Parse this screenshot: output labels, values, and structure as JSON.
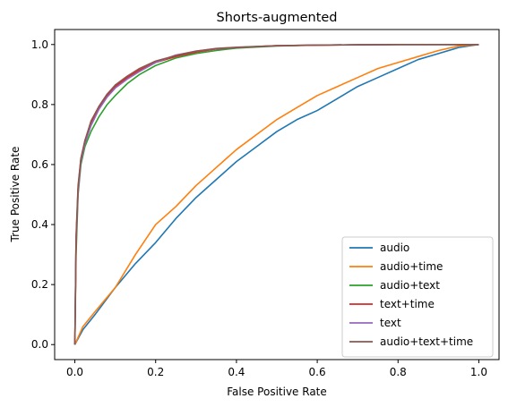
{
  "chart_data": {
    "type": "line",
    "title": "Shorts-augmented",
    "xlabel": "False Positive Rate",
    "ylabel": "True Positive Rate",
    "xlim": [
      -0.05,
      1.05
    ],
    "ylim": [
      -0.05,
      1.05
    ],
    "xticks": [
      "0.0",
      "0.2",
      "0.4",
      "0.6",
      "0.8",
      "1.0"
    ],
    "yticks": [
      "0.0",
      "0.2",
      "0.4",
      "0.6",
      "0.8",
      "1.0"
    ],
    "grid": false,
    "legend_position": "lower right",
    "series": [
      {
        "name": "audio",
        "color": "#1f77b4",
        "x": [
          0,
          0.02,
          0.05,
          0.1,
          0.15,
          0.2,
          0.25,
          0.3,
          0.35,
          0.4,
          0.45,
          0.5,
          0.55,
          0.6,
          0.65,
          0.7,
          0.75,
          0.8,
          0.85,
          0.9,
          0.95,
          1.0
        ],
        "y": [
          0,
          0.05,
          0.1,
          0.19,
          0.27,
          0.34,
          0.42,
          0.49,
          0.55,
          0.61,
          0.66,
          0.71,
          0.75,
          0.78,
          0.82,
          0.86,
          0.89,
          0.92,
          0.95,
          0.97,
          0.99,
          1.0
        ]
      },
      {
        "name": "audio+time",
        "color": "#ff7f0e",
        "x": [
          0,
          0.02,
          0.05,
          0.1,
          0.15,
          0.2,
          0.25,
          0.3,
          0.35,
          0.4,
          0.45,
          0.5,
          0.55,
          0.6,
          0.65,
          0.7,
          0.75,
          0.8,
          0.85,
          0.9,
          0.95,
          1.0
        ],
        "y": [
          0,
          0.06,
          0.11,
          0.19,
          0.3,
          0.4,
          0.46,
          0.53,
          0.59,
          0.65,
          0.7,
          0.75,
          0.79,
          0.83,
          0.86,
          0.89,
          0.92,
          0.94,
          0.96,
          0.98,
          0.995,
          1.0
        ]
      },
      {
        "name": "audio+text",
        "color": "#2ca02c",
        "x": [
          0,
          0.003,
          0.008,
          0.015,
          0.025,
          0.04,
          0.06,
          0.08,
          0.1,
          0.13,
          0.16,
          0.2,
          0.25,
          0.3,
          0.35,
          0.4,
          0.5,
          0.6,
          0.7,
          0.8,
          0.9,
          1.0
        ],
        "y": [
          0,
          0.3,
          0.5,
          0.6,
          0.66,
          0.71,
          0.76,
          0.8,
          0.83,
          0.87,
          0.9,
          0.93,
          0.955,
          0.97,
          0.98,
          0.988,
          0.995,
          0.998,
          0.999,
          1.0,
          1.0,
          1.0
        ]
      },
      {
        "name": "text+time",
        "color": "#d62728",
        "x": [
          0,
          0.003,
          0.008,
          0.015,
          0.025,
          0.04,
          0.06,
          0.08,
          0.1,
          0.13,
          0.16,
          0.2,
          0.25,
          0.3,
          0.35,
          0.4,
          0.5,
          0.6,
          0.7,
          0.8,
          0.9,
          1.0
        ],
        "y": [
          0,
          0.35,
          0.52,
          0.62,
          0.68,
          0.74,
          0.79,
          0.83,
          0.86,
          0.89,
          0.915,
          0.94,
          0.96,
          0.975,
          0.985,
          0.99,
          0.996,
          0.998,
          0.999,
          1.0,
          1.0,
          1.0
        ]
      },
      {
        "name": "text",
        "color": "#9467bd",
        "x": [
          0,
          0.003,
          0.008,
          0.015,
          0.025,
          0.04,
          0.06,
          0.08,
          0.1,
          0.13,
          0.16,
          0.2,
          0.25,
          0.3,
          0.35,
          0.4,
          0.5,
          0.6,
          0.7,
          0.8,
          0.9,
          1.0
        ],
        "y": [
          0,
          0.34,
          0.51,
          0.61,
          0.67,
          0.73,
          0.785,
          0.825,
          0.855,
          0.885,
          0.91,
          0.94,
          0.965,
          0.978,
          0.986,
          0.99,
          0.996,
          0.998,
          0.999,
          1.0,
          1.0,
          1.0
        ]
      },
      {
        "name": "audio+text+time",
        "color": "#8c564b",
        "x": [
          0,
          0.003,
          0.008,
          0.015,
          0.025,
          0.04,
          0.06,
          0.08,
          0.1,
          0.13,
          0.16,
          0.2,
          0.25,
          0.3,
          0.35,
          0.4,
          0.5,
          0.6,
          0.7,
          0.8,
          0.9,
          1.0
        ],
        "y": [
          0,
          0.36,
          0.53,
          0.62,
          0.68,
          0.745,
          0.795,
          0.835,
          0.865,
          0.895,
          0.92,
          0.945,
          0.963,
          0.978,
          0.987,
          0.991,
          0.996,
          0.998,
          0.999,
          1.0,
          1.0,
          1.0
        ]
      }
    ]
  }
}
